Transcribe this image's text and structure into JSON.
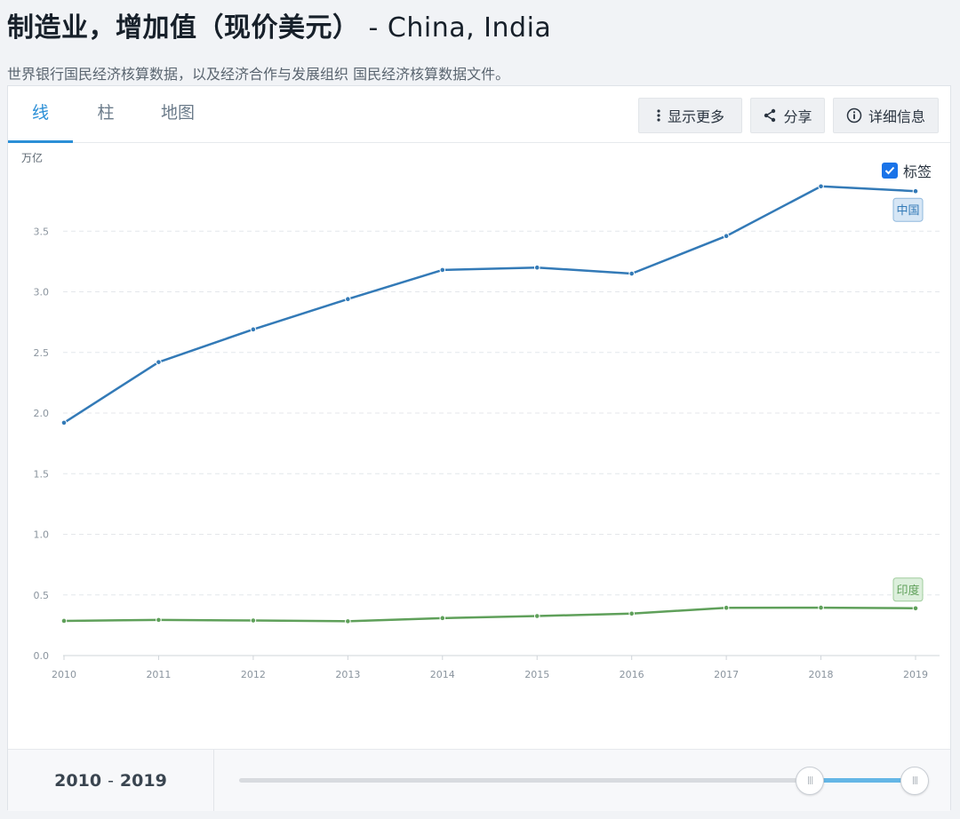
{
  "header": {
    "title": "制造业，增加值（现价美元）",
    "countries": " - China, India",
    "source_note": "世界银行国民经济核算数据，以及经济合作与发展组织 国民经济核算数据文件。"
  },
  "tabs": [
    {
      "label": "线",
      "active": true
    },
    {
      "label": "柱",
      "active": false
    },
    {
      "label": "地图",
      "active": false
    }
  ],
  "toolbar": {
    "more_label": "显示更多",
    "share_label": "分享",
    "details_label": "详细信息"
  },
  "labels_toggle": {
    "label": "标签",
    "checked": true
  },
  "colors": {
    "accent": "#2b8fd6",
    "china_line": "#337ab7",
    "india_line": "#5fa05a"
  },
  "chart_data": {
    "type": "line",
    "unit_label": "万亿",
    "x": [
      2010,
      2011,
      2012,
      2013,
      2014,
      2015,
      2016,
      2017,
      2018,
      2019
    ],
    "ylim": [
      0,
      4.0
    ],
    "yticks": [
      "0.0",
      "0.5",
      "1.0",
      "1.5",
      "2.0",
      "2.5",
      "3.0",
      "3.5"
    ],
    "ytick_values": [
      0,
      0.5,
      1.0,
      1.5,
      2.0,
      2.5,
      3.0,
      3.5
    ],
    "grid": true,
    "series": [
      {
        "name": "中国",
        "color": "#337ab7",
        "tag_fill": "#d6e6f5",
        "tag_stroke": "#8fb8dd",
        "values": [
          1.92,
          2.42,
          2.69,
          2.94,
          3.18,
          3.2,
          3.15,
          3.46,
          3.87,
          3.83
        ]
      },
      {
        "name": "印度",
        "color": "#5fa05a",
        "tag_fill": "#dcefdc",
        "tag_stroke": "#9fcc9c",
        "values": [
          0.286,
          0.294,
          0.289,
          0.283,
          0.309,
          0.326,
          0.346,
          0.394,
          0.395,
          0.39
        ]
      }
    ]
  },
  "footer": {
    "start_year": "2010",
    "end_year": "2019",
    "range_separator": "-",
    "slider_start_fraction": 0.845,
    "slider_end_fraction": 1.0
  }
}
